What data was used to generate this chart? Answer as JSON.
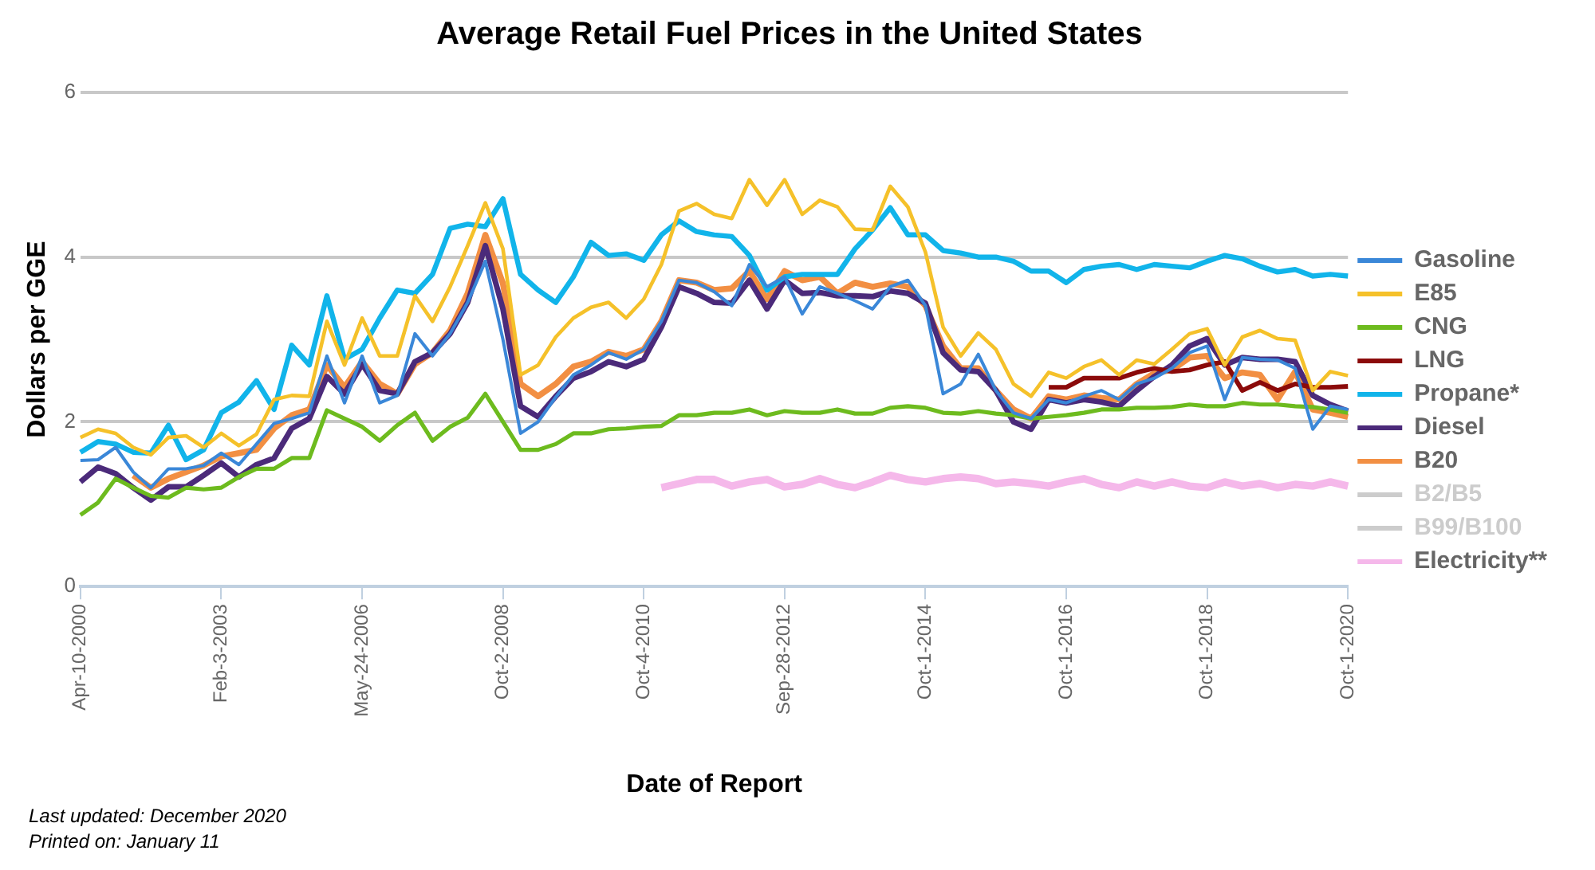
{
  "chart_data": {
    "type": "line",
    "title": "Average Retail Fuel Prices in the United States",
    "xlabel": "Date of Report",
    "ylabel": "Dollars per GGE",
    "categories": [
      "Apr-10-2000",
      null,
      null,
      null,
      null,
      null,
      null,
      null,
      "Feb-3-2003",
      null,
      null,
      null,
      null,
      null,
      null,
      null,
      "May-24-2006",
      null,
      null,
      null,
      null,
      null,
      null,
      null,
      "Oct-2-2008",
      null,
      null,
      null,
      null,
      null,
      null,
      null,
      "Oct-4-2010",
      null,
      null,
      null,
      null,
      null,
      null,
      null,
      "Sep-28-2012",
      null,
      null,
      null,
      null,
      null,
      null,
      null,
      "Oct-1-2014",
      null,
      null,
      null,
      null,
      null,
      null,
      null,
      "Oct-1-2016",
      null,
      null,
      null,
      null,
      null,
      null,
      null,
      "Oct-1-2018",
      null,
      null,
      null,
      null,
      null,
      null,
      null,
      "Oct-1-2020"
    ],
    "ylim": [
      0,
      6
    ],
    "yticks": [
      0,
      2,
      4,
      6
    ],
    "grid": "y",
    "legend": "right",
    "marker": "none",
    "line_style": "solid",
    "annotations": [
      "Last updated: December 2020",
      "Printed on: January 11"
    ],
    "series": [
      {
        "name": "Gasoline",
        "color": "#3a87d8",
        "values": [
          1.53,
          1.54,
          1.69,
          1.39,
          1.2,
          1.43,
          1.43,
          1.47,
          1.62,
          1.48,
          1.73,
          1.98,
          2.04,
          2.11,
          2.8,
          2.23,
          2.8,
          2.23,
          2.32,
          3.07,
          2.8,
          3.07,
          3.45,
          3.95,
          3.0,
          1.86,
          2.0,
          2.3,
          2.57,
          2.69,
          2.84,
          2.76,
          2.88,
          3.22,
          3.72,
          3.69,
          3.58,
          3.41,
          3.91,
          3.64,
          3.76,
          3.31,
          3.64,
          3.56,
          3.47,
          3.37,
          3.64,
          3.72,
          3.41,
          2.34,
          2.46,
          2.82,
          2.38,
          2.11,
          2.04,
          2.27,
          2.23,
          2.31,
          2.38,
          2.27,
          2.46,
          2.53,
          2.65,
          2.84,
          2.92,
          2.27,
          2.78,
          2.76,
          2.75,
          2.65,
          1.91,
          2.19,
          2.15
        ]
      },
      {
        "name": "E85",
        "color": "#f5c12a",
        "values": [
          1.81,
          1.91,
          1.86,
          1.69,
          1.6,
          1.81,
          1.83,
          1.69,
          1.86,
          1.71,
          1.85,
          2.27,
          2.32,
          2.31,
          3.22,
          2.69,
          3.26,
          2.8,
          2.8,
          3.53,
          3.22,
          3.64,
          4.14,
          4.66,
          4.1,
          2.57,
          2.69,
          3.03,
          3.26,
          3.39,
          3.45,
          3.26,
          3.49,
          3.91,
          4.56,
          4.65,
          4.52,
          4.47,
          4.94,
          4.63,
          4.94,
          4.52,
          4.69,
          4.61,
          4.34,
          4.33,
          4.86,
          4.61,
          4.06,
          3.15,
          2.8,
          3.08,
          2.88,
          2.46,
          2.31,
          2.6,
          2.53,
          2.67,
          2.75,
          2.57,
          2.75,
          2.7,
          2.88,
          3.07,
          3.13,
          2.69,
          3.03,
          3.11,
          3.01,
          2.99,
          2.38,
          2.61,
          2.56
        ]
      },
      {
        "name": "CNG",
        "color": "#6dbb1e",
        "values": [
          0.87,
          1.02,
          1.31,
          1.2,
          1.1,
          1.08,
          1.2,
          1.18,
          1.2,
          1.33,
          1.43,
          1.43,
          1.56,
          1.56,
          2.14,
          2.04,
          1.94,
          1.77,
          1.96,
          2.11,
          1.77,
          1.94,
          2.05,
          2.34,
          2.0,
          1.66,
          1.66,
          1.73,
          1.86,
          1.86,
          1.91,
          1.92,
          1.94,
          1.95,
          2.08,
          2.08,
          2.11,
          2.11,
          2.15,
          2.08,
          2.13,
          2.11,
          2.11,
          2.15,
          2.1,
          2.1,
          2.17,
          2.19,
          2.17,
          2.11,
          2.1,
          2.13,
          2.1,
          2.08,
          2.04,
          2.06,
          2.08,
          2.11,
          2.15,
          2.15,
          2.17,
          2.17,
          2.18,
          2.21,
          2.19,
          2.19,
          2.23,
          2.21,
          2.21,
          2.19,
          2.18,
          2.15,
          2.11
        ]
      },
      {
        "name": "LNG",
        "color": "#8b0a0a",
        "values": [
          null,
          null,
          null,
          null,
          null,
          null,
          null,
          null,
          null,
          null,
          null,
          null,
          null,
          null,
          null,
          null,
          null,
          null,
          null,
          null,
          null,
          null,
          null,
          null,
          null,
          null,
          null,
          null,
          null,
          null,
          null,
          null,
          null,
          null,
          null,
          null,
          null,
          null,
          null,
          null,
          null,
          null,
          null,
          null,
          null,
          null,
          null,
          null,
          null,
          null,
          null,
          null,
          null,
          null,
          null,
          2.42,
          2.42,
          2.53,
          2.53,
          2.53,
          2.6,
          2.65,
          2.61,
          2.63,
          2.69,
          2.73,
          2.38,
          2.48,
          2.38,
          2.46,
          2.42,
          2.42,
          2.43
        ]
      },
      {
        "name": "Propane*",
        "color": "#11b4ea",
        "values": [
          1.63,
          1.76,
          1.73,
          1.63,
          1.62,
          1.96,
          1.54,
          1.66,
          2.11,
          2.24,
          2.5,
          2.15,
          2.93,
          2.69,
          3.53,
          2.76,
          2.88,
          3.26,
          3.6,
          3.56,
          3.79,
          4.35,
          4.4,
          4.37,
          4.71,
          3.79,
          3.6,
          3.45,
          3.76,
          4.18,
          4.02,
          4.04,
          3.96,
          4.27,
          4.44,
          4.31,
          4.27,
          4.25,
          4.02,
          3.6,
          3.76,
          3.79,
          3.79,
          3.79,
          4.1,
          4.33,
          4.6,
          4.27,
          4.27,
          4.08,
          4.05,
          4.0,
          4.0,
          3.95,
          3.83,
          3.83,
          3.69,
          3.85,
          3.89,
          3.91,
          3.85,
          3.91,
          3.89,
          3.87,
          3.95,
          4.02,
          3.98,
          3.89,
          3.82,
          3.85,
          3.77,
          3.79,
          3.77
        ]
      },
      {
        "name": "Diesel",
        "color": "#4b2a7a",
        "values": [
          1.27,
          1.45,
          1.37,
          1.2,
          1.05,
          1.21,
          1.21,
          1.35,
          1.5,
          1.33,
          1.48,
          1.56,
          1.92,
          2.04,
          2.55,
          2.34,
          2.7,
          2.38,
          2.34,
          2.73,
          2.84,
          3.07,
          3.45,
          4.14,
          3.37,
          2.19,
          2.06,
          2.31,
          2.53,
          2.61,
          2.73,
          2.67,
          2.76,
          3.15,
          3.64,
          3.56,
          3.45,
          3.44,
          3.72,
          3.37,
          3.72,
          3.56,
          3.57,
          3.53,
          3.53,
          3.52,
          3.59,
          3.56,
          3.44,
          2.84,
          2.63,
          2.61,
          2.38,
          2.0,
          1.91,
          2.27,
          2.23,
          2.27,
          2.24,
          2.19,
          2.38,
          2.55,
          2.69,
          2.92,
          3.01,
          2.69,
          2.78,
          2.76,
          2.76,
          2.73,
          2.32,
          2.21,
          2.13
        ]
      },
      {
        "name": "B20",
        "color": "#f28f43",
        "values": [
          null,
          null,
          null,
          1.35,
          1.2,
          1.31,
          1.39,
          1.47,
          1.58,
          1.62,
          1.66,
          1.92,
          2.08,
          2.15,
          2.69,
          2.42,
          2.73,
          2.46,
          2.34,
          2.7,
          2.84,
          3.11,
          3.56,
          4.27,
          3.68,
          2.46,
          2.31,
          2.46,
          2.67,
          2.73,
          2.85,
          2.8,
          2.88,
          3.22,
          3.72,
          3.69,
          3.6,
          3.62,
          3.83,
          3.49,
          3.83,
          3.72,
          3.76,
          3.56,
          3.69,
          3.64,
          3.68,
          3.64,
          3.41,
          2.92,
          2.65,
          2.65,
          2.38,
          2.15,
          2.04,
          2.31,
          2.27,
          2.32,
          2.29,
          2.27,
          2.46,
          2.59,
          2.63,
          2.78,
          2.8,
          2.53,
          2.6,
          2.57,
          2.27,
          2.61,
          2.15,
          2.11,
          2.06
        ]
      },
      {
        "name": "B2/B5",
        "color": "#cccccc",
        "values": [
          null,
          null,
          null,
          null,
          null,
          null,
          null,
          null,
          null,
          null,
          null,
          null,
          null,
          null,
          null,
          null,
          null,
          null,
          null,
          null,
          null,
          null,
          null,
          null,
          null,
          null,
          null,
          null,
          null,
          null,
          null,
          null,
          null,
          null,
          null,
          null,
          null,
          null,
          null,
          null,
          null,
          null,
          null,
          null,
          null,
          null,
          null,
          null,
          null,
          null,
          null,
          null,
          null,
          null,
          null,
          null,
          null,
          null,
          null,
          null,
          null,
          null,
          null,
          null,
          null,
          null,
          null,
          null,
          null,
          null,
          null,
          null,
          null
        ]
      },
      {
        "name": "B99/B100",
        "color": "#cccccc",
        "values": [
          null,
          null,
          null,
          null,
          null,
          null,
          null,
          null,
          null,
          null,
          null,
          null,
          null,
          null,
          null,
          null,
          null,
          null,
          null,
          null,
          null,
          null,
          null,
          null,
          null,
          null,
          null,
          null,
          null,
          null,
          null,
          null,
          null,
          null,
          null,
          null,
          null,
          null,
          null,
          null,
          null,
          null,
          null,
          null,
          null,
          null,
          null,
          null,
          null,
          null,
          null,
          null,
          null,
          null,
          null,
          null,
          null,
          null,
          null,
          null,
          null,
          null,
          null,
          null,
          null,
          null,
          null,
          null,
          null,
          null,
          null,
          null,
          null
        ]
      },
      {
        "name": "Electricity**",
        "color": "#f5b8ea",
        "values": [
          null,
          null,
          null,
          null,
          null,
          null,
          null,
          null,
          null,
          null,
          null,
          null,
          null,
          null,
          null,
          null,
          null,
          null,
          null,
          null,
          null,
          null,
          null,
          null,
          null,
          null,
          null,
          null,
          null,
          null,
          null,
          null,
          null,
          1.2,
          1.25,
          1.3,
          1.3,
          1.22,
          1.27,
          1.3,
          1.21,
          1.24,
          1.31,
          1.24,
          1.2,
          1.27,
          1.35,
          1.3,
          1.27,
          1.31,
          1.33,
          1.31,
          1.25,
          1.27,
          1.25,
          1.22,
          1.27,
          1.31,
          1.24,
          1.2,
          1.27,
          1.22,
          1.27,
          1.22,
          1.2,
          1.27,
          1.22,
          1.25,
          1.2,
          1.24,
          1.22,
          1.27,
          1.22
        ]
      }
    ]
  }
}
